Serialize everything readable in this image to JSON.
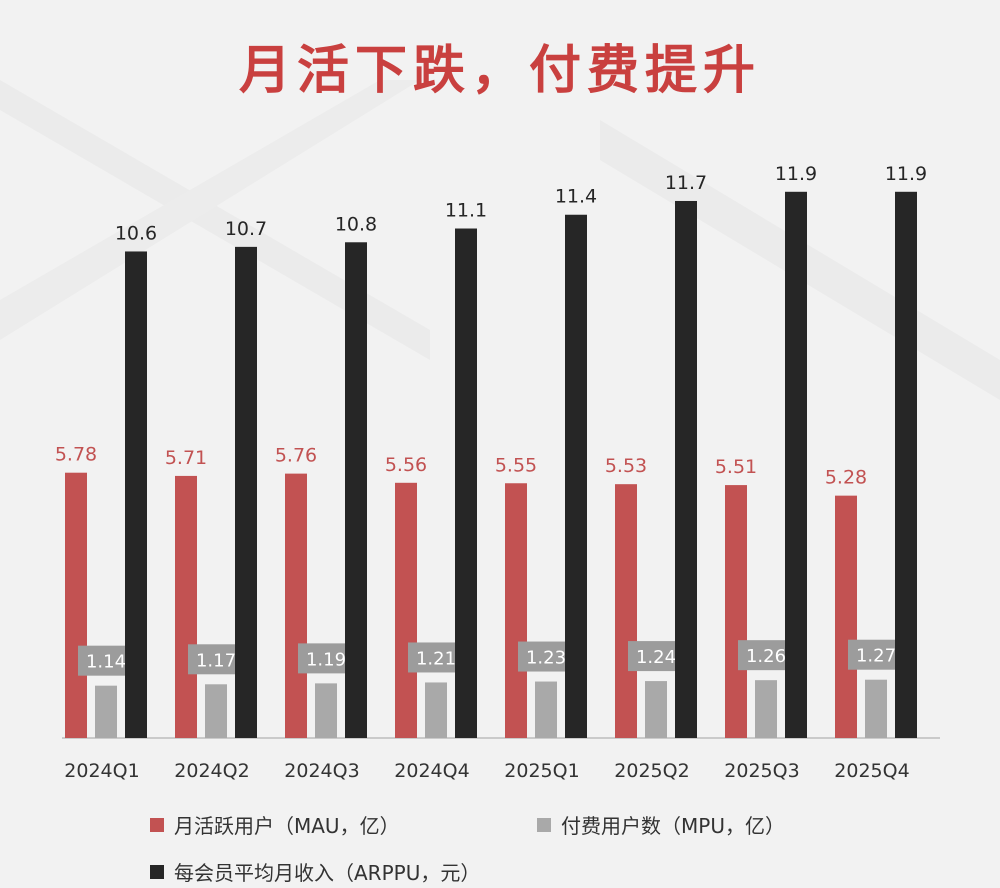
{
  "title": "月活下跌，付费提升",
  "chart_data": {
    "type": "bar",
    "categories": [
      "2024Q1",
      "2024Q2",
      "2024Q3",
      "2024Q4",
      "2025Q1",
      "2025Q2",
      "2025Q3",
      "2025Q4"
    ],
    "series": [
      {
        "name": "月活跃用户（MAU，亿）",
        "values": [
          5.78,
          5.71,
          5.76,
          5.56,
          5.55,
          5.53,
          5.51,
          5.28
        ],
        "color": "#c25252"
      },
      {
        "name": "付费用户数（MPU，亿）",
        "values": [
          1.14,
          1.17,
          1.19,
          1.21,
          1.23,
          1.24,
          1.26,
          1.27
        ],
        "color": "#a9a9a9"
      },
      {
        "name": "每会员平均月收入（ARPPU，元）",
        "values": [
          10.6,
          10.7,
          10.8,
          11.1,
          11.4,
          11.7,
          11.9,
          11.9
        ],
        "color": "#262626"
      }
    ],
    "legend": "bottom",
    "grid": false
  }
}
